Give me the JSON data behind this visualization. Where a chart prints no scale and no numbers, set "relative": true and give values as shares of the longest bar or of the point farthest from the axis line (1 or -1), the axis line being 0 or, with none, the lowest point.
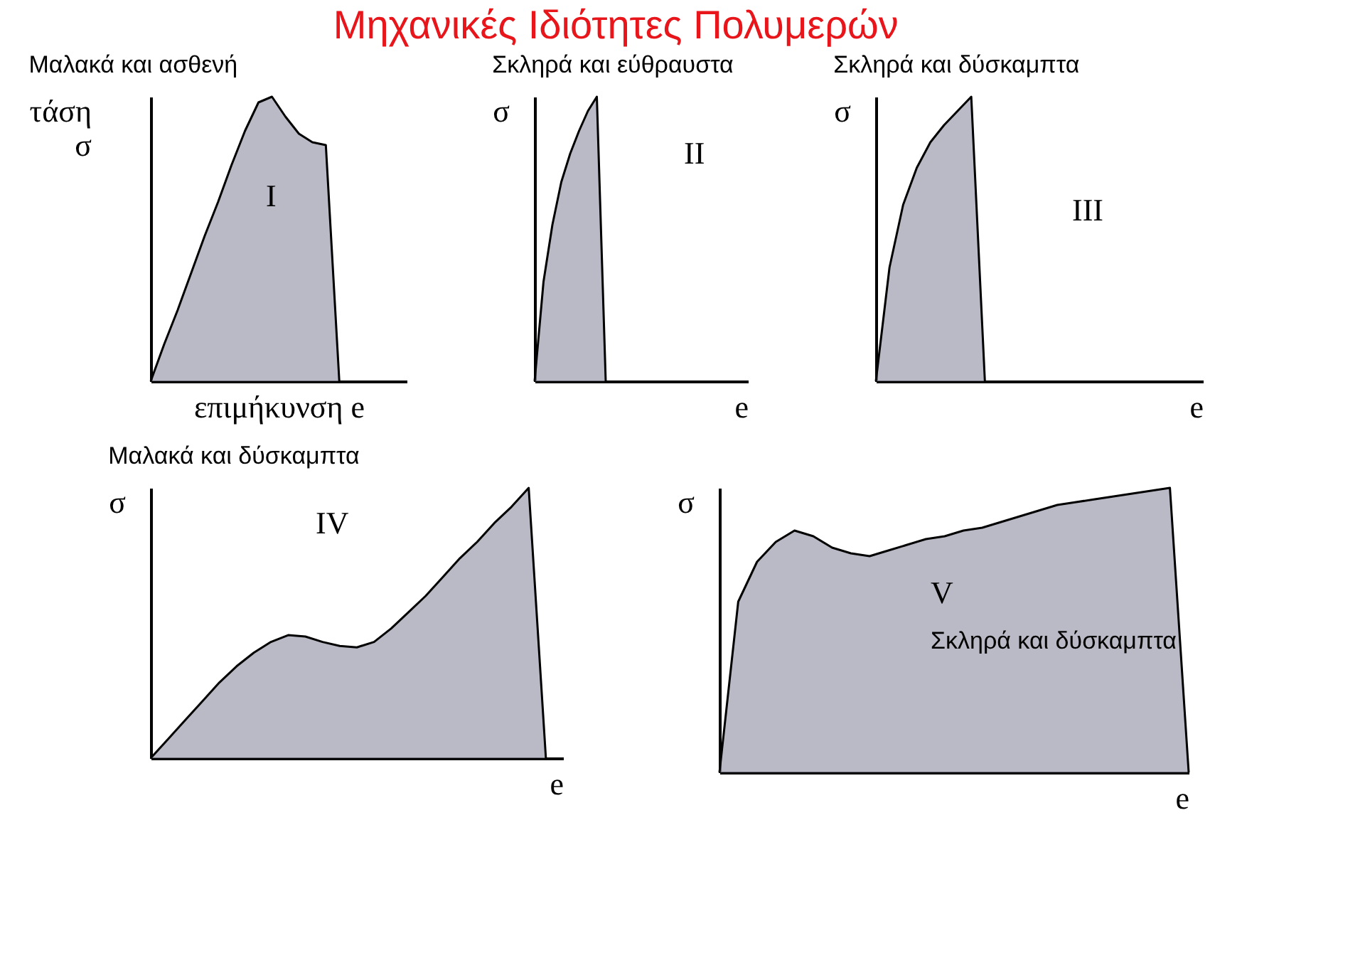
{
  "chart_data": [
    {
      "type": "area",
      "relative": true,
      "tick_labels": false,
      "title": "Μαλακά και ασθενή",
      "ylabel": "τάση σ",
      "xlabel": "επιμήκυνση e",
      "annotations": [
        "I"
      ],
      "color": "#9c9cae",
      "categories": [
        null,
        null,
        null,
        null,
        null,
        null,
        null,
        null,
        null,
        null,
        null,
        null,
        null,
        null,
        null,
        null,
        null,
        null,
        null,
        null
      ],
      "values": [
        0,
        0.13,
        0.25,
        0.38,
        0.51,
        0.63,
        0.76,
        0.88,
        0.98,
        1.0,
        0.93,
        0.87,
        0.84,
        0.83,
        0,
        null,
        null,
        null,
        null,
        null
      ]
    },
    {
      "type": "area",
      "relative": true,
      "tick_labels": false,
      "title": "Σκληρά και εύθραυστα",
      "ylabel": "σ",
      "xlabel": "e",
      "annotations": [
        "II"
      ],
      "color": "#9c9cae",
      "categories": [
        null,
        null,
        null,
        null,
        null,
        null,
        null,
        null,
        null,
        null,
        null,
        null,
        null,
        null,
        null,
        null,
        null,
        null,
        null,
        null,
        null,
        null,
        null,
        null,
        null
      ],
      "values": [
        0,
        0.35,
        0.55,
        0.7,
        0.8,
        0.88,
        0.95,
        1.0,
        0,
        null,
        null,
        null,
        null,
        null,
        null,
        null,
        null,
        null,
        null,
        null,
        null,
        null,
        null,
        null,
        null
      ]
    },
    {
      "type": "area",
      "relative": true,
      "tick_labels": false,
      "title": "Σκληρά και δύσκαμπτα",
      "ylabel": "σ",
      "xlabel": "e",
      "annotations": [
        "III"
      ],
      "color": "#9c9cae",
      "categories": [
        null,
        null,
        null,
        null,
        null,
        null,
        null,
        null,
        null,
        null,
        null,
        null,
        null,
        null,
        null,
        null,
        null,
        null,
        null,
        null,
        null,
        null,
        null,
        null,
        null
      ],
      "values": [
        0,
        0.4,
        0.62,
        0.75,
        0.84,
        0.9,
        0.95,
        1.0,
        0,
        null,
        null,
        null,
        null,
        null,
        null,
        null,
        null,
        null,
        null,
        null,
        null,
        null,
        null,
        null,
        null
      ]
    },
    {
      "type": "area",
      "relative": true,
      "tick_labels": false,
      "title": "Μαλακά και δύσκαμπτα",
      "ylabel": "σ",
      "xlabel": "e",
      "annotations": [
        "IV"
      ],
      "color": "#9c9cae",
      "categories": [
        null,
        null,
        null,
        null,
        null,
        null,
        null,
        null,
        null,
        null,
        null,
        null,
        null,
        null,
        null,
        null,
        null,
        null,
        null,
        null,
        null,
        null,
        null,
        null,
        null
      ],
      "values": [
        0,
        0.07,
        0.14,
        0.21,
        0.28,
        0.34,
        0.39,
        0.43,
        0.455,
        0.45,
        0.43,
        0.415,
        0.41,
        0.43,
        0.48,
        0.54,
        0.6,
        0.67,
        0.74,
        0.8,
        0.87,
        0.93,
        1.0,
        0,
        null
      ]
    },
    {
      "type": "area",
      "relative": true,
      "tick_labels": false,
      "ylabel": "σ",
      "xlabel": "e",
      "annotations": [
        "V",
        "Σκληρά και δύσκαμπτα"
      ],
      "color": "#9c9cae",
      "categories": [
        null,
        null,
        null,
        null,
        null,
        null,
        null,
        null,
        null,
        null,
        null,
        null,
        null,
        null,
        null,
        null,
        null,
        null,
        null,
        null,
        null,
        null,
        null,
        null,
        null,
        null
      ],
      "values": [
        0,
        0.6,
        0.74,
        0.81,
        0.85,
        0.83,
        0.79,
        0.77,
        0.76,
        0.78,
        0.8,
        0.82,
        0.83,
        0.85,
        0.86,
        0.88,
        0.9,
        0.92,
        0.94,
        0.95,
        0.96,
        0.97,
        0.98,
        0.99,
        1.0,
        0
      ]
    },
    {
      "type": "other",
      "title": "Μηχανικές Ιδιότητες Πολυμερών"
    }
  ]
}
